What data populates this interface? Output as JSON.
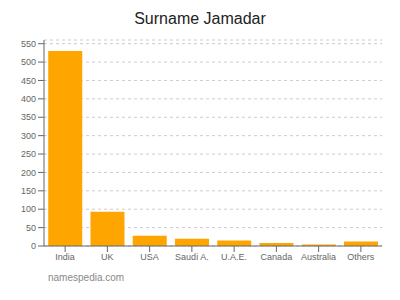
{
  "chart_data": {
    "type": "bar",
    "title": "Surname Jamadar",
    "categories": [
      "India",
      "UK",
      "USA",
      "Saudi A.",
      "U.A.E.",
      "Canada",
      "Australia",
      "Others"
    ],
    "values": [
      530,
      93,
      28,
      20,
      15,
      8,
      4,
      12
    ],
    "color": "#FFA500",
    "ylim": [
      0,
      560
    ],
    "yticks": [
      0,
      50,
      100,
      150,
      200,
      250,
      300,
      350,
      400,
      450,
      500,
      550
    ],
    "grid": true,
    "annotations": [
      "namespedia.com"
    ]
  }
}
